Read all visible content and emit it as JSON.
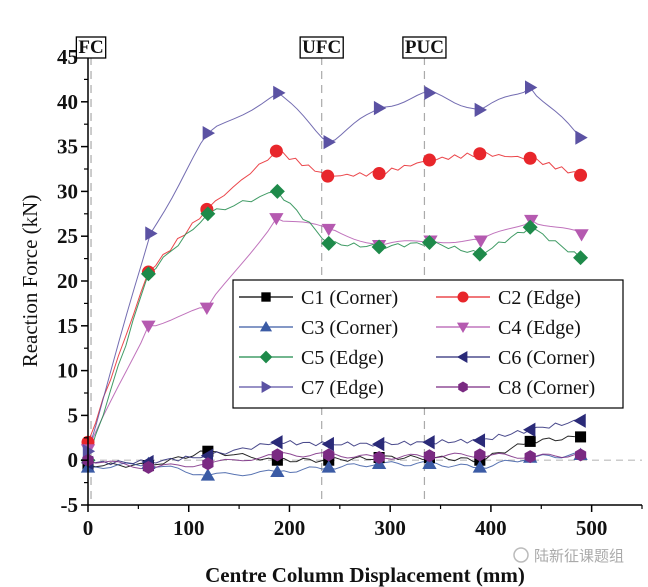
{
  "chart_data": {
    "type": "line",
    "title": "",
    "xlabel": "Centre Column Displacement (mm)",
    "ylabel": "Reaction Force (kN)",
    "xlim": [
      0,
      550
    ],
    "ylim": [
      -5,
      45
    ],
    "xticks": [
      0,
      100,
      200,
      300,
      400,
      500
    ],
    "yticks": [
      -5,
      0,
      5,
      10,
      15,
      20,
      25,
      30,
      35,
      40,
      45
    ],
    "grid": false,
    "legend_position": "center-right",
    "zero_reference_line": true,
    "annotations": [
      {
        "label": "FC",
        "x": 3
      },
      {
        "label": "UFC",
        "x": 232
      },
      {
        "label": "PUC",
        "x": 334
      }
    ],
    "series": [
      {
        "name": "C1 (Corner)",
        "color": "#000000",
        "marker": "square",
        "x": [
          0,
          60,
          119,
          188,
          239,
          289,
          339,
          389,
          439,
          489
        ],
        "y": [
          -0.5,
          -0.6,
          1.0,
          0.0,
          0.0,
          0.3,
          0.3,
          0.0,
          2.1,
          2.6
        ]
      },
      {
        "name": "C2 (Edge)",
        "color": "#e8262b",
        "marker": "circle",
        "x": [
          0,
          60,
          118,
          187,
          238,
          289,
          339,
          389,
          439,
          489
        ],
        "y": [
          2,
          21,
          28,
          34.5,
          31.7,
          32,
          33.5,
          34.2,
          33.7,
          31.8
        ]
      },
      {
        "name": "C3 (Corner)",
        "color": "#3b5ba5",
        "marker": "triangle-up",
        "x": [
          0,
          60,
          119,
          188,
          239,
          289,
          339,
          389,
          439,
          489
        ],
        "y": [
          -0.8,
          -0.4,
          -1.7,
          -1.3,
          -0.8,
          -0.4,
          -0.4,
          -0.8,
          0.3,
          0.6
        ]
      },
      {
        "name": "C4 (Edge)",
        "color": "#b55ab0",
        "marker": "triangle-down",
        "x": [
          0,
          60,
          118,
          187,
          239,
          289,
          340,
          390,
          440,
          490
        ],
        "y": [
          1.2,
          15,
          17,
          27,
          25.8,
          24,
          24.5,
          24.5,
          26.8,
          25.2
        ]
      },
      {
        "name": "C5 (Edge)",
        "color": "#1e8a4a",
        "marker": "diamond",
        "x": [
          0,
          60,
          119,
          188,
          239,
          289,
          339,
          389,
          439,
          489
        ],
        "y": [
          0,
          20.8,
          27.5,
          30,
          24.2,
          23.8,
          24.3,
          23,
          26,
          22.6
        ]
      },
      {
        "name": "C6 (Corner)",
        "color": "#2a2a78",
        "marker": "triangle-left",
        "x": [
          0,
          60,
          119,
          188,
          239,
          289,
          339,
          389,
          439,
          489
        ],
        "y": [
          -0.3,
          -0.2,
          0.5,
          2.0,
          1.8,
          1.8,
          2.0,
          2.2,
          3.4,
          4.4
        ]
      },
      {
        "name": "C7 (Edge)",
        "color": "#5b52a3",
        "marker": "triangle-right",
        "x": [
          0,
          62,
          119,
          189,
          239,
          289,
          339,
          389,
          439,
          489
        ],
        "y": [
          1,
          25.3,
          36.5,
          41,
          35.5,
          39.3,
          41,
          39.1,
          41.6,
          36
        ]
      },
      {
        "name": "C8 (Corner)",
        "color": "#7a2a82",
        "marker": "hexagon",
        "x": [
          0,
          60,
          119,
          188,
          239,
          289,
          339,
          389,
          439,
          489
        ],
        "y": [
          0,
          -0.8,
          -0.4,
          0.6,
          0.6,
          0.3,
          0.5,
          0.6,
          0.4,
          0.6
        ]
      }
    ]
  },
  "watermark": "陆新征课题组"
}
